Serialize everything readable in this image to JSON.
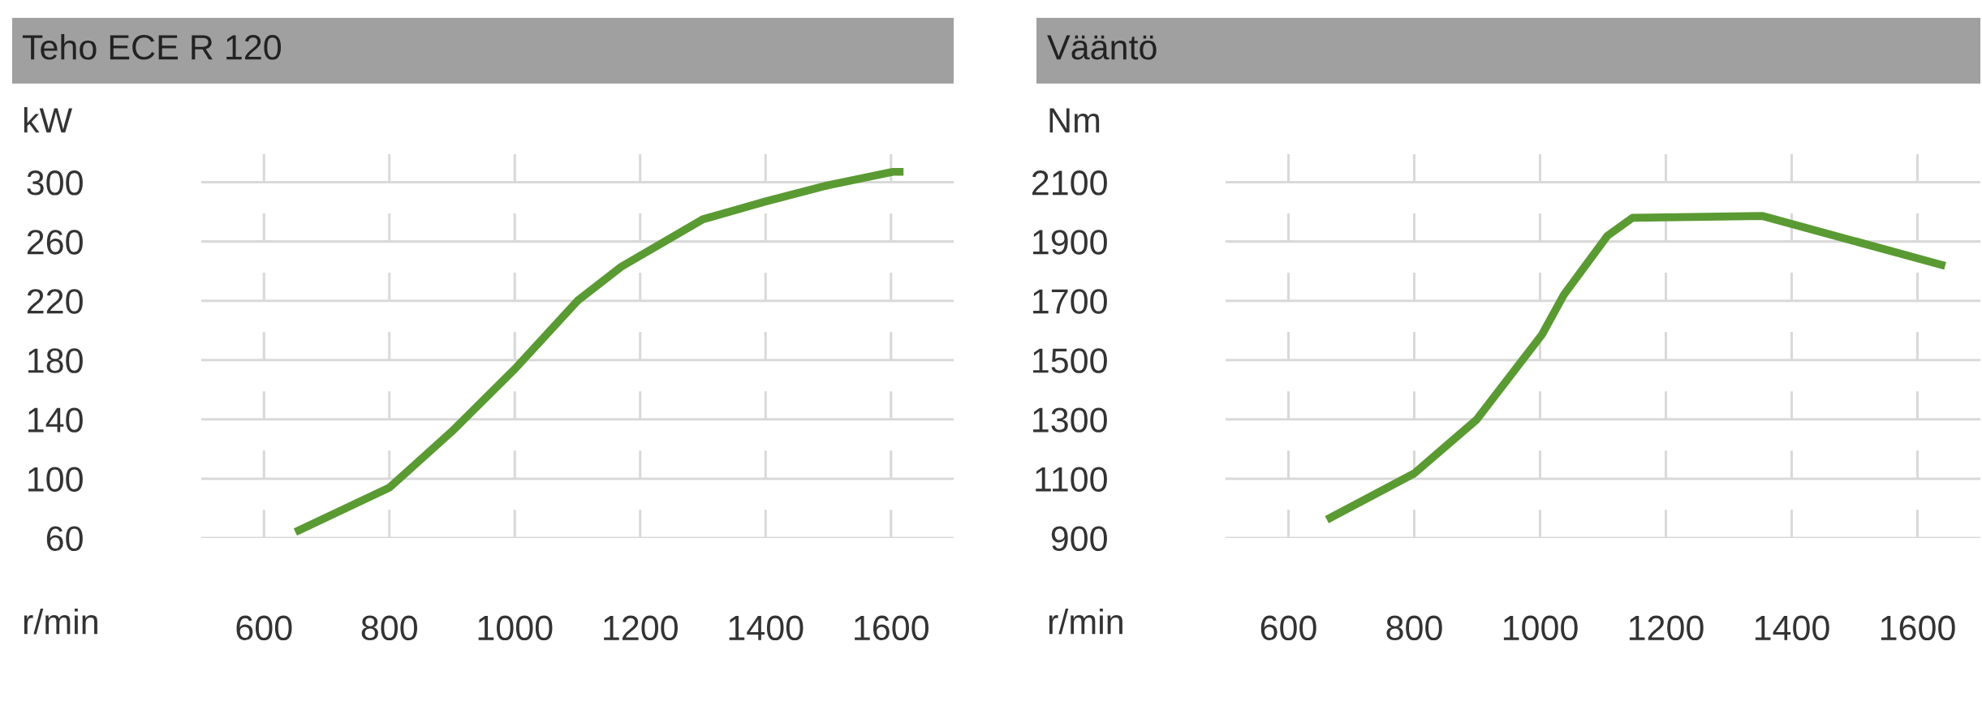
{
  "chart_data": [
    {
      "type": "line",
      "title": "Teho ECE R 120",
      "ylabel": "kW",
      "xlabel": "r/min",
      "xlim": [
        500,
        1700
      ],
      "xticks": [
        600,
        800,
        1000,
        1200,
        1400,
        1600
      ],
      "ylim": [
        60,
        320
      ],
      "yticks": [
        60,
        100,
        140,
        180,
        220,
        260,
        300
      ],
      "grid": true,
      "legend": false,
      "series": [
        {
          "color": "#5a9a32",
          "x": [
            650,
            800,
            900,
            1000,
            1100,
            1170,
            1300,
            1400,
            1500,
            1603,
            1620
          ],
          "values": [
            64,
            94,
            132,
            174,
            220,
            243,
            275,
            287,
            298,
            307,
            307
          ]
        }
      ]
    },
    {
      "type": "line",
      "title": "Vääntö",
      "ylabel": "Nm",
      "xlabel": "r/min",
      "xlim": [
        500,
        1700
      ],
      "xticks": [
        600,
        800,
        1000,
        1200,
        1400,
        1600
      ],
      "ylim": [
        900,
        2200
      ],
      "yticks": [
        900,
        1100,
        1300,
        1500,
        1700,
        1900,
        2100
      ],
      "grid": true,
      "legend": false,
      "series": [
        {
          "color": "#5a9a32",
          "x": [
            661,
            800,
            899,
            1003,
            1038,
            1107,
            1147,
            1354,
            1644
          ],
          "values": [
            962,
            1118,
            1299,
            1586,
            1721,
            1919,
            1980,
            1986,
            1818
          ]
        }
      ]
    }
  ]
}
